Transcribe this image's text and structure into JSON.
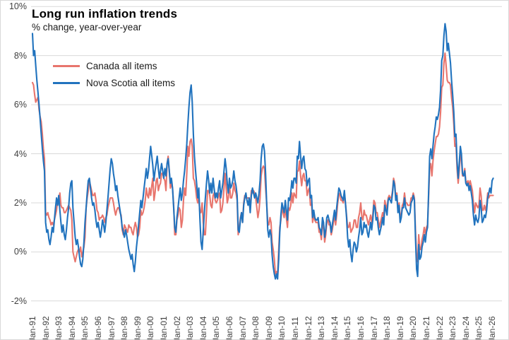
{
  "title": "Long run inflation trends",
  "subtitle": "% change, year-over-year",
  "colors": {
    "canada_line": "#E8756D",
    "nova_scotia_line": "#2173BE",
    "gridline": "#D9D9D9",
    "axis_text": "#404040",
    "background": "#FFFFFF"
  },
  "legend": {
    "items": [
      {
        "label": "Canada all items",
        "color": "#E8756D"
      },
      {
        "label": "Nova Scotia all items",
        "color": "#2173BE"
      }
    ]
  },
  "chart_data": {
    "type": "line",
    "title": "Long run inflation trends",
    "subtitle": "% change, year-over-year",
    "xlabel": "",
    "ylabel": "",
    "frequency": "monthly",
    "x_start": "1991-01",
    "x_end": "2026-02",
    "ylim": [
      -2,
      10
    ],
    "grid": "horizontal",
    "legend_position": "top-left-inside",
    "y_ticks": [
      10,
      8,
      6,
      4,
      2,
      0,
      -2
    ],
    "y_tick_labels": [
      "10%",
      "8%",
      "6%",
      "4%",
      "2%",
      "0%",
      "-2%"
    ],
    "x_tick_labels": [
      "Jan-91",
      "Jan-92",
      "Jan-93",
      "Jan-94",
      "Jan-95",
      "Jan-96",
      "Jan-97",
      "Jan-98",
      "Jan-99",
      "Jan-00",
      "Jan-01",
      "Jan-02",
      "Jan-03",
      "Jan-04",
      "Jan-05",
      "Jan-06",
      "Jan-07",
      "Jan-08",
      "Jan-09",
      "Jan-10",
      "Jan-11",
      "Jan-12",
      "Jan-13",
      "Jan-14",
      "Jan-15",
      "Jan-16",
      "Jan-17",
      "Jan-18",
      "Jan-19",
      "Jan-20",
      "Jan-21",
      "Jan-22",
      "Jan-23",
      "Jan-24",
      "Jan-25",
      "Jan-26"
    ],
    "x_tick_interval_months": 12,
    "series": [
      {
        "name": "Canada all items",
        "color": "#E8756D",
        "values": [
          6.9,
          6.8,
          6.4,
          6.1,
          6.2,
          6.3,
          5.8,
          5.5,
          5.3,
          4.8,
          4.2,
          3.8,
          1.6,
          1.5,
          1.6,
          1.4,
          1.3,
          1.1,
          1.2,
          1.1,
          1.3,
          1.5,
          1.7,
          2.1,
          2.0,
          2.4,
          1.9,
          1.8,
          1.8,
          1.6,
          1.6,
          1.7,
          1.8,
          1.9,
          1.8,
          1.7,
          1.3,
          0.0,
          -0.2,
          -0.4,
          -0.2,
          0.0,
          0.1,
          0.0,
          0.2,
          -0.2,
          0.0,
          0.2,
          0.6,
          1.8,
          2.2,
          2.5,
          2.9,
          2.7,
          2.5,
          2.3,
          2.3,
          2.4,
          2.1,
          1.7,
          1.6,
          1.3,
          1.4,
          1.4,
          1.5,
          1.4,
          1.2,
          1.4,
          1.5,
          1.8,
          2.0,
          2.2,
          2.2,
          2.2,
          2.0,
          1.7,
          1.5,
          1.7,
          1.8,
          1.8,
          1.6,
          1.5,
          0.9,
          0.7,
          1.1,
          1.0,
          0.9,
          0.8,
          1.1,
          1.0,
          1.0,
          0.8,
          0.7,
          1.0,
          1.2,
          1.0,
          0.6,
          0.7,
          1.0,
          1.7,
          1.5,
          1.6,
          1.8,
          2.1,
          2.6,
          2.3,
          2.2,
          2.6,
          2.3,
          2.7,
          3.0,
          2.1,
          2.4,
          2.9,
          3.0,
          2.5,
          2.7,
          2.8,
          3.2,
          3.2,
          3.0,
          2.9,
          2.5,
          3.6,
          3.9,
          3.3,
          2.6,
          2.8,
          2.6,
          1.9,
          0.7,
          0.7,
          1.3,
          1.5,
          1.8,
          1.7,
          1.0,
          1.3,
          2.1,
          2.6,
          2.3,
          3.2,
          4.3,
          3.9,
          4.5,
          4.6,
          4.3,
          3.0,
          2.9,
          2.6,
          2.2,
          2.0,
          2.2,
          1.6,
          1.6,
          2.0,
          1.2,
          0.7,
          0.7,
          1.6,
          2.5,
          2.5,
          2.3,
          1.9,
          1.8,
          2.3,
          2.4,
          2.1,
          2.0,
          2.1,
          2.3,
          2.4,
          1.6,
          1.7,
          2.0,
          2.6,
          3.2,
          2.6,
          2.0,
          2.2,
          2.8,
          2.2,
          2.2,
          2.4,
          2.8,
          2.5,
          2.4,
          2.1,
          0.7,
          1.0,
          1.4,
          1.6,
          1.2,
          2.0,
          2.3,
          2.2,
          2.2,
          2.2,
          2.2,
          1.7,
          2.5,
          2.4,
          2.5,
          2.4,
          2.2,
          1.8,
          1.4,
          1.7,
          2.2,
          3.1,
          3.4,
          3.5,
          3.4,
          2.6,
          2.0,
          1.2,
          1.1,
          1.4,
          1.2,
          0.4,
          0.1,
          -0.3,
          -0.9,
          -0.8,
          -0.9,
          0.1,
          1.0,
          1.3,
          1.9,
          1.6,
          1.4,
          1.8,
          1.4,
          1.0,
          1.8,
          1.7,
          1.9,
          2.4,
          2.0,
          2.4,
          2.3,
          2.2,
          3.3,
          3.3,
          3.7,
          3.1,
          2.7,
          3.1,
          3.2,
          2.9,
          2.9,
          2.3,
          2.5,
          2.6,
          1.9,
          2.0,
          1.2,
          1.5,
          1.3,
          1.2,
          1.2,
          1.2,
          0.8,
          0.8,
          0.5,
          1.2,
          1.0,
          0.4,
          0.7,
          1.2,
          1.3,
          1.1,
          1.1,
          0.7,
          0.9,
          1.2,
          1.5,
          1.1,
          1.5,
          2.0,
          2.3,
          2.4,
          2.1,
          2.1,
          2.0,
          2.4,
          2.0,
          1.5,
          1.0,
          1.0,
          1.2,
          0.8,
          0.9,
          1.0,
          1.3,
          1.3,
          1.0,
          1.0,
          1.4,
          1.6,
          2.0,
          1.4,
          1.3,
          1.7,
          1.5,
          1.5,
          1.3,
          1.1,
          1.3,
          1.5,
          1.2,
          1.5,
          2.1,
          2.0,
          1.6,
          1.6,
          1.3,
          1.0,
          1.2,
          1.4,
          1.6,
          1.4,
          2.1,
          1.9,
          1.7,
          2.2,
          2.3,
          2.2,
          2.2,
          2.5,
          3.0,
          2.8,
          2.2,
          2.4,
          1.7,
          2.0,
          1.4,
          1.5,
          1.9,
          2.0,
          2.4,
          2.0,
          2.0,
          1.9,
          1.9,
          1.9,
          2.2,
          2.2,
          2.4,
          2.2,
          0.9,
          -0.2,
          -0.4,
          0.7,
          0.1,
          0.1,
          0.5,
          0.7,
          1.0,
          0.7,
          1.0,
          1.1,
          2.2,
          3.4,
          3.6,
          3.1,
          3.7,
          4.1,
          4.4,
          4.7,
          4.7,
          4.8,
          5.1,
          5.7,
          6.7,
          6.8,
          7.7,
          8.1,
          7.6,
          7.0,
          6.9,
          6.9,
          6.8,
          6.3,
          5.9,
          5.2,
          4.3,
          4.4,
          3.4,
          2.8,
          3.3,
          4.0,
          3.8,
          3.1,
          3.1,
          3.4,
          2.9,
          2.8,
          2.9,
          2.7,
          2.9,
          2.7,
          2.5,
          2.0,
          1.6,
          2.0,
          1.9,
          1.8,
          1.9,
          2.6,
          2.3,
          1.7,
          1.7,
          1.9,
          1.7,
          1.9,
          2.4,
          2.2,
          2.3,
          2.3,
          2.3,
          2.3
        ]
      },
      {
        "name": "Nova Scotia all items",
        "color": "#2173BE",
        "values": [
          8.9,
          8.0,
          8.2,
          7.6,
          7.0,
          6.5,
          6.0,
          5.4,
          4.8,
          4.2,
          3.7,
          3.3,
          1.2,
          0.8,
          0.9,
          0.5,
          0.3,
          0.6,
          1.0,
          0.8,
          1.3,
          1.8,
          2.2,
          1.9,
          2.3,
          1.7,
          1.2,
          0.8,
          1.1,
          0.7,
          0.5,
          0.9,
          1.4,
          1.8,
          2.4,
          2.8,
          2.9,
          1.8,
          1.2,
          0.6,
          0.3,
          0.5,
          0.2,
          -0.2,
          -0.5,
          -0.6,
          -0.3,
          0.4,
          1.2,
          1.8,
          2.4,
          2.9,
          3.0,
          2.6,
          2.2,
          1.9,
          2.0,
          1.7,
          1.3,
          1.0,
          1.2,
          0.9,
          0.6,
          0.9,
          1.3,
          1.1,
          0.8,
          1.2,
          1.7,
          2.2,
          2.8,
          3.4,
          3.8,
          3.6,
          3.2,
          2.9,
          2.5,
          2.7,
          2.3,
          2.0,
          1.7,
          1.4,
          1.0,
          0.8,
          0.6,
          0.9,
          0.7,
          0.4,
          0.1,
          -0.1,
          -0.3,
          -0.1,
          -0.5,
          -0.8,
          -0.4,
          0.2,
          0.6,
          1.1,
          1.6,
          2.1,
          1.8,
          2.2,
          2.6,
          3.0,
          3.4,
          3.0,
          3.3,
          3.8,
          4.3,
          3.9,
          3.5,
          2.9,
          3.3,
          3.6,
          3.9,
          3.4,
          3.0,
          3.3,
          3.6,
          3.3,
          3.0,
          3.4,
          3.1,
          3.6,
          3.8,
          3.3,
          2.8,
          3.0,
          2.6,
          1.8,
          1.0,
          0.8,
          1.4,
          1.8,
          2.2,
          2.6,
          2.1,
          2.4,
          2.9,
          3.3,
          3.8,
          4.4,
          5.2,
          5.9,
          6.5,
          6.8,
          6.1,
          4.8,
          3.9,
          3.3,
          2.8,
          2.2,
          2.6,
          1.4,
          0.4,
          0.1,
          0.8,
          1.6,
          2.2,
          2.8,
          3.3,
          2.9,
          2.4,
          2.8,
          2.4,
          3.0,
          2.6,
          2.2,
          2.4,
          2.2,
          2.6,
          2.9,
          2.2,
          2.5,
          2.8,
          3.3,
          3.8,
          3.4,
          2.8,
          2.4,
          3.0,
          2.6,
          2.7,
          2.9,
          3.3,
          2.9,
          2.7,
          2.3,
          0.9,
          0.8,
          1.3,
          1.6,
          1.2,
          1.9,
          2.2,
          2.4,
          2.1,
          1.9,
          2.2,
          1.6,
          2.3,
          2.6,
          2.4,
          2.2,
          2.4,
          2.2,
          2.0,
          2.4,
          2.9,
          3.8,
          4.3,
          4.4,
          4.1,
          3.2,
          2.0,
          0.9,
          0.6,
          0.9,
          0.7,
          -0.1,
          -0.6,
          -0.9,
          -1.1,
          -0.9,
          -1.1,
          -0.3,
          0.8,
          1.5,
          2.0,
          1.8,
          1.6,
          2.1,
          1.7,
          1.3,
          2.2,
          2.1,
          2.4,
          2.9,
          2.6,
          3.0,
          3.0,
          2.8,
          3.9,
          3.8,
          4.5,
          3.9,
          3.4,
          3.8,
          3.9,
          3.4,
          3.3,
          2.7,
          2.9,
          3.0,
          2.2,
          2.3,
          1.4,
          1.7,
          1.4,
          1.3,
          1.3,
          1.4,
          1.0,
          0.9,
          0.7,
          1.4,
          1.2,
          0.6,
          0.9,
          1.4,
          1.5,
          1.3,
          1.2,
          0.8,
          1.1,
          1.4,
          1.7,
          1.3,
          1.8,
          2.2,
          2.6,
          2.5,
          2.3,
          2.2,
          2.1,
          2.5,
          2.0,
          1.4,
          0.6,
          0.2,
          0.5,
          -0.1,
          -0.4,
          0.1,
          0.4,
          0.3,
          0.0,
          0.2,
          0.6,
          0.9,
          1.4,
          0.7,
          0.8,
          1.2,
          1.0,
          1.1,
          0.8,
          0.6,
          0.9,
          1.2,
          0.9,
          1.3,
          1.9,
          1.8,
          1.3,
          1.4,
          1.0,
          0.7,
          0.9,
          1.1,
          1.4,
          1.1,
          1.9,
          1.7,
          1.5,
          2.1,
          2.2,
          2.1,
          2.0,
          2.4,
          2.9,
          2.7,
          2.1,
          2.3,
          1.6,
          1.9,
          1.2,
          1.4,
          1.8,
          1.8,
          2.2,
          1.8,
          1.7,
          1.6,
          1.5,
          1.6,
          2.0,
          2.1,
          2.3,
          2.1,
          0.6,
          -0.7,
          -1.0,
          0.3,
          -0.3,
          -0.2,
          0.2,
          0.4,
          0.7,
          0.4,
          0.8,
          1.0,
          2.4,
          3.9,
          4.2,
          3.8,
          4.3,
          4.8,
          5.1,
          5.5,
          5.4,
          5.6,
          5.9,
          6.6,
          7.8,
          8.0,
          8.8,
          9.3,
          9.0,
          8.2,
          8.5,
          8.1,
          7.7,
          7.0,
          6.4,
          5.7,
          4.7,
          4.8,
          3.7,
          3.0,
          3.6,
          4.3,
          4.0,
          3.2,
          3.1,
          3.3,
          2.8,
          2.7,
          2.8,
          2.5,
          2.7,
          2.4,
          2.1,
          1.5,
          1.1,
          1.5,
          1.3,
          1.2,
          1.4,
          2.1,
          1.8,
          1.2,
          1.3,
          1.5,
          1.4,
          1.7,
          2.2,
          2.4,
          2.6,
          2.4,
          2.9,
          3.0
        ]
      }
    ]
  }
}
